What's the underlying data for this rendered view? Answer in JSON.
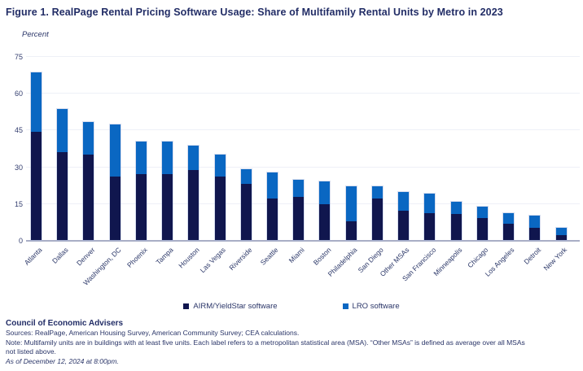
{
  "figure": {
    "title": "Figure 1. RealPage Rental Pricing Software Usage: Share of Multifamily Rental Units by Metro in 2023",
    "unit_label": "Percent"
  },
  "legend": {
    "airm_label": "AIRM/YieldStar software",
    "lro_label": "LRO software"
  },
  "footer": {
    "org": "Council of Economic Advisers",
    "sources": "Sources: RealPage, American Housing Survey, American Community Survey; CEA calculations.",
    "note_line1": "Note: Multifamily units are in buildings with at least five units. Each label refers to a metropolitan statistical area (MSA). “Other MSAs” is defined as average over all MSAs",
    "note_line2": "not listed above.",
    "as_of": "As of December 12, 2024 at 8:00pm."
  },
  "chart_data": {
    "type": "bar",
    "stacked": true,
    "title": "Figure 1. RealPage Rental Pricing Software Usage: Share of Multifamily Rental Units by Metro in 2023",
    "xlabel": "",
    "ylabel": "Percent",
    "ylim": [
      0,
      75
    ],
    "yticks": [
      0,
      15,
      30,
      45,
      60,
      75
    ],
    "grid": true,
    "legend_position": "bottom",
    "categories": [
      "Atlanta",
      "Dallas",
      "Denver",
      "Washington, DC",
      "Phoenix",
      "Tampa",
      "Houston",
      "Las Vegas",
      "Riverside",
      "Seattle",
      "Miami",
      "Boston",
      "Philadelphia",
      "San Diego",
      "Other MSAs",
      "San Francisco",
      "Minneapolis",
      "Chicago",
      "Los Angeles",
      "Detroit",
      "New York"
    ],
    "series": [
      {
        "name": "AIRM/YieldStar software",
        "color": "#10164E",
        "values": [
          44,
          36,
          35,
          26,
          27,
          27,
          28.5,
          26,
          23,
          17,
          17.5,
          14.5,
          7.5,
          17,
          12,
          11,
          10.5,
          9,
          6.5,
          5,
          2
        ]
      },
      {
        "name": "LRO software",
        "color": "#0A67C2",
        "values": [
          24.5,
          17.5,
          13,
          21,
          13,
          13,
          10,
          9,
          6,
          10.5,
          7,
          9.5,
          14.5,
          5,
          7.5,
          8,
          5,
          4.5,
          4.5,
          5,
          3
        ]
      }
    ],
    "totals": [
      68.5,
      53.5,
      48,
      47,
      40,
      40,
      38.5,
      35,
      29,
      27.5,
      24.5,
      24,
      22,
      22,
      19.5,
      19,
      15.5,
      13.5,
      11,
      10,
      5
    ],
    "colors": {
      "airm": "#10164E",
      "lro": "#0A67C2",
      "gridline": "#EEF0F7",
      "axis": "#A9AEC6",
      "text": "#222D66"
    }
  }
}
